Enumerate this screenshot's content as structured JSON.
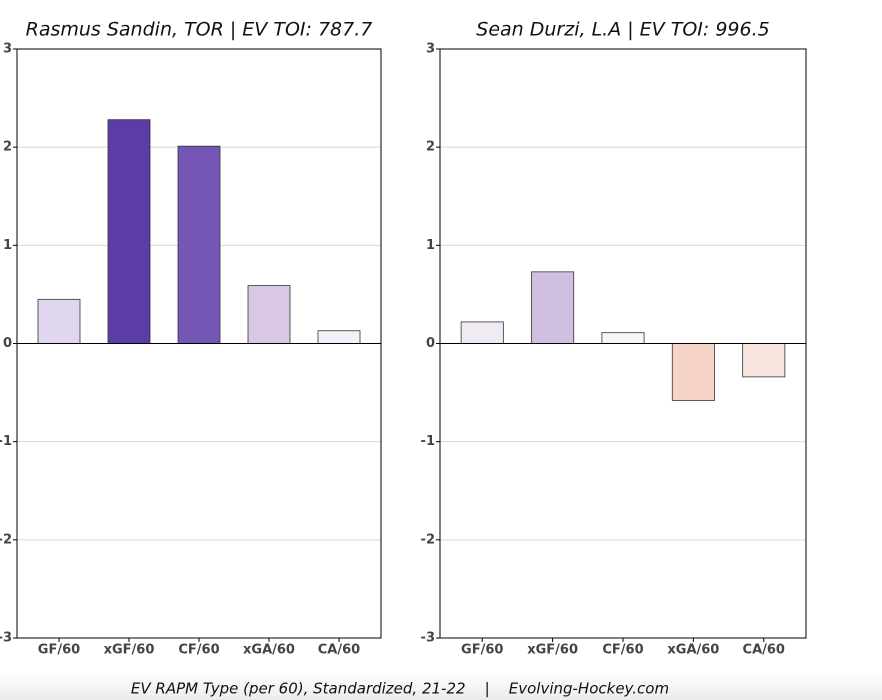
{
  "chart_data": [
    {
      "type": "bar",
      "title": "Rasmus Sandin, TOR  |  EV TOI: 787.7",
      "categories": [
        "GF/60",
        "xGF/60",
        "CF/60",
        "xGA/60",
        "CA/60"
      ],
      "values": [
        0.45,
        2.28,
        2.01,
        0.59,
        0.13
      ],
      "colors": [
        "#e0d6ee",
        "#5e3ca6",
        "#7556b5",
        "#d8c8e6",
        "#f3f0f7"
      ],
      "ylim": [
        -3,
        3
      ],
      "yticks": [
        -3,
        -2,
        -1,
        0,
        1,
        2,
        3
      ],
      "grid": true
    },
    {
      "type": "bar",
      "title": "Sean Durzi, L.A  |  EV TOI: 996.5",
      "categories": [
        "GF/60",
        "xGF/60",
        "CF/60",
        "xGA/60",
        "CA/60"
      ],
      "values": [
        0.22,
        0.73,
        0.11,
        -0.58,
        -0.34
      ],
      "colors": [
        "#f0eaf5",
        "#cfc0e2",
        "#f7f5fa",
        "#f7d4c8",
        "#f9e5df"
      ],
      "ylim": [
        -3,
        3
      ],
      "yticks": [
        -3,
        -2,
        -1,
        0,
        1,
        2,
        3
      ],
      "grid": true
    }
  ],
  "caption": "EV RAPM Type (per 60), Standardized, 21-22    |    Evolving-Hockey.com"
}
